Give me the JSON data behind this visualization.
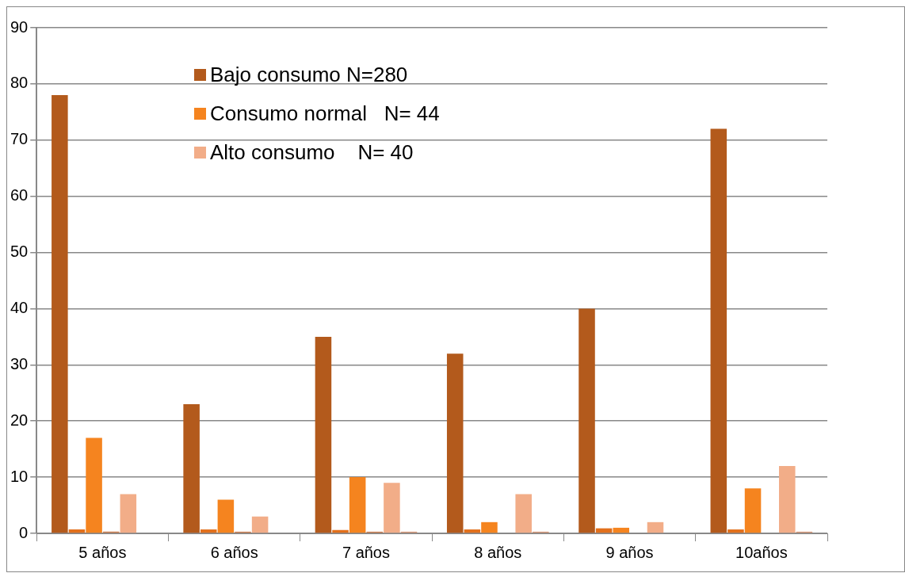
{
  "chart_data": {
    "type": "bar",
    "categories": [
      "5 años",
      "6 años",
      "7 años",
      "8 años",
      "9 años",
      "10años"
    ],
    "series": [
      {
        "name": "Bajo consumo N=280",
        "color": "#b35a1c",
        "values": [
          78,
          23,
          35,
          32,
          40,
          72
        ]
      },
      {
        "color": "#e2701c",
        "values": [
          0.7,
          0.7,
          0.6,
          0.7,
          0.9,
          0.7
        ]
      },
      {
        "name": "Consumo normal   N= 44",
        "color": "#f5841f",
        "values": [
          17,
          6,
          10,
          2,
          1,
          8
        ]
      },
      {
        "color": "#d08050",
        "values": [
          0.3,
          0.3,
          0.3,
          0,
          0,
          0
        ]
      },
      {
        "name": "Alto consumo    N= 40",
        "color": "#f2ad88",
        "values": [
          7,
          3,
          9,
          7,
          2,
          12
        ]
      },
      {
        "color": "#d89878",
        "values": [
          0,
          0,
          0.3,
          0.3,
          0,
          0.3
        ]
      }
    ],
    "ylim": [
      0,
      90
    ],
    "yticks": [
      0,
      10,
      20,
      30,
      40,
      50,
      60,
      70,
      80,
      90
    ],
    "grid": "y",
    "legend": "top left"
  }
}
